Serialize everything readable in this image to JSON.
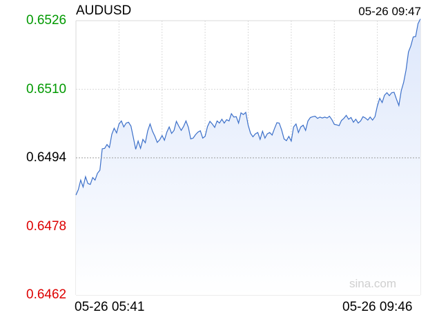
{
  "chart_data": {
    "type": "area",
    "title": "AUDUSD",
    "timestamp": "05-26 09:47",
    "watermark": "sina.com",
    "x_labels": [
      "05-26 05:41",
      "05-26 09:46"
    ],
    "ylim": [
      0.6462,
      0.6526
    ],
    "y_ticks": [
      {
        "label": "0.6526",
        "value": 0.6526,
        "color": "#009900"
      },
      {
        "label": "0.6510",
        "value": 0.651,
        "color": "#009900"
      },
      {
        "label": "0.6494",
        "value": 0.6494,
        "color": "#000000"
      },
      {
        "label": "0.6478",
        "value": 0.6478,
        "color": "#dd0000"
      },
      {
        "label": "0.6462",
        "value": 0.6462,
        "color": "#dd0000"
      }
    ],
    "reference_value": 0.6494,
    "grid": true,
    "colors": {
      "line": "#3b6fc9",
      "fill": "#dde7fb",
      "grid": "#d9d9d9"
    },
    "series": [
      {
        "values": [
          0.64853,
          0.64866,
          0.64888,
          0.64872,
          0.64896,
          0.6488,
          0.64878,
          0.64894,
          0.64888,
          0.64904,
          0.64911,
          0.64961,
          0.64962,
          0.64971,
          0.64964,
          0.64995,
          0.65009,
          0.64998,
          0.65019,
          0.65026,
          0.65012,
          0.65021,
          0.65023,
          0.65014,
          0.64987,
          0.6496,
          0.64979,
          0.64962,
          0.64983,
          0.64975,
          0.65003,
          0.65019,
          0.65002,
          0.6499,
          0.64976,
          0.64982,
          0.64992,
          0.64981,
          0.65,
          0.65012,
          0.64997,
          0.65004,
          0.65025,
          0.65014,
          0.65004,
          0.65013,
          0.65026,
          0.65011,
          0.64984,
          0.64986,
          0.64994,
          0.65,
          0.65003,
          0.64986,
          0.6499,
          0.65013,
          0.65025,
          0.65019,
          0.65011,
          0.65026,
          0.65021,
          0.6503,
          0.65021,
          0.65029,
          0.65026,
          0.65043,
          0.65035,
          0.65036,
          0.65021,
          0.65045,
          0.65041,
          0.65046,
          0.65016,
          0.64997,
          0.64989,
          0.64996,
          0.64999,
          0.64983,
          0.65002,
          0.64986,
          0.64996,
          0.64999,
          0.64993,
          0.65008,
          0.65022,
          0.65021,
          0.65005,
          0.64984,
          0.6498,
          0.6499,
          0.64979,
          0.65012,
          0.65019,
          0.64999,
          0.65012,
          0.65016,
          0.65004,
          0.65026,
          0.65034,
          0.65036,
          0.65037,
          0.65032,
          0.65035,
          0.65033,
          0.65035,
          0.65033,
          0.65037,
          0.65029,
          0.65018,
          0.65017,
          0.65015,
          0.65027,
          0.65032,
          0.65039,
          0.6503,
          0.65034,
          0.65023,
          0.6503,
          0.65021,
          0.65026,
          0.65036,
          0.65033,
          0.65028,
          0.65035,
          0.65028,
          0.65036,
          0.65061,
          0.65079,
          0.65069,
          0.65086,
          0.65092,
          0.65085,
          0.65092,
          0.65093,
          0.65077,
          0.65062,
          0.65097,
          0.65116,
          0.65145,
          0.65187,
          0.65201,
          0.65222,
          0.65223,
          0.65253,
          0.65264
        ]
      }
    ]
  }
}
